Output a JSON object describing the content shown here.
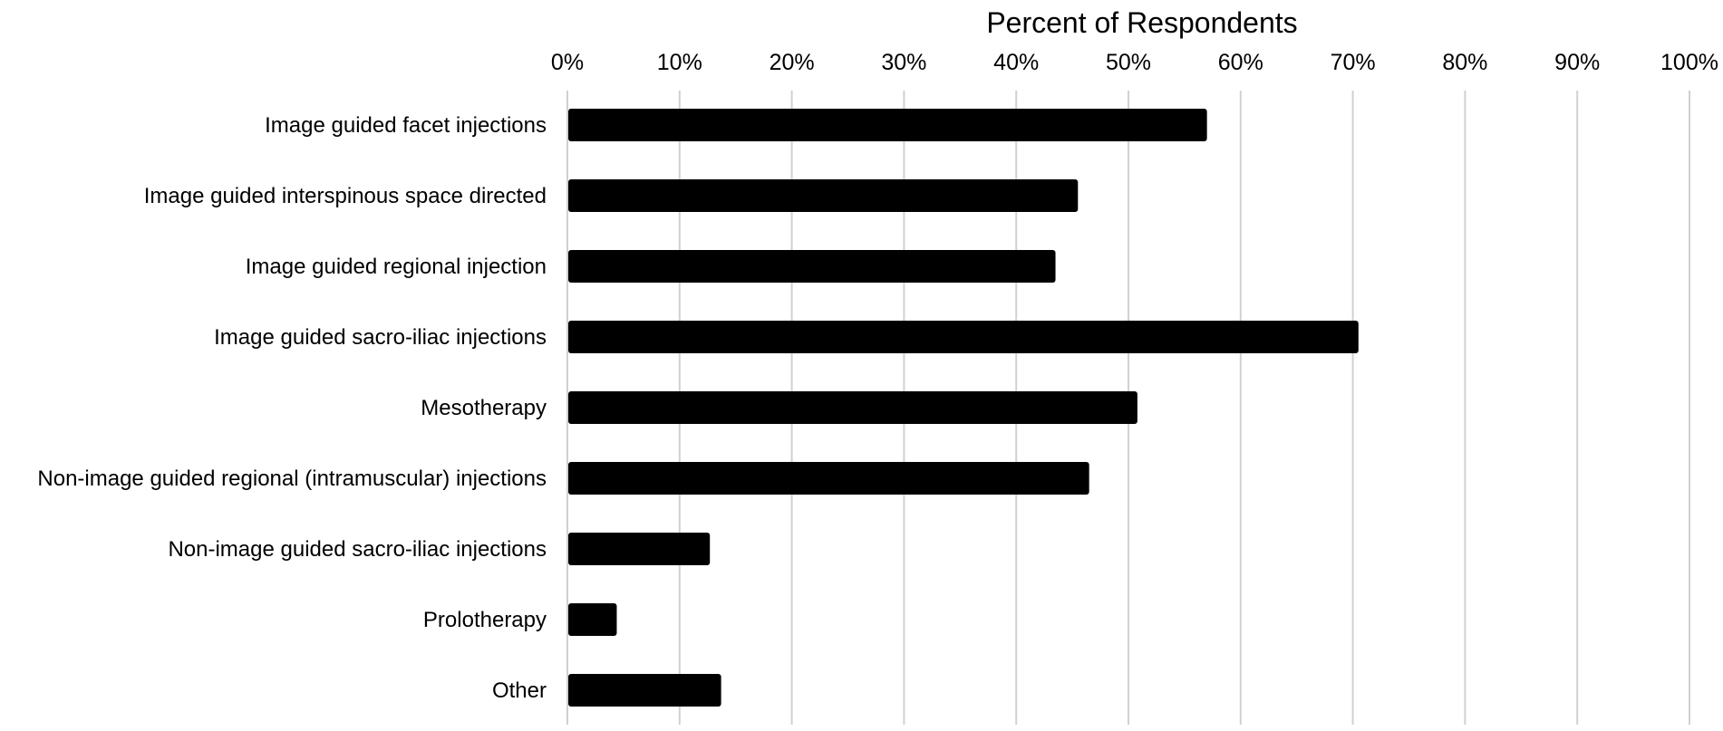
{
  "chart_data": {
    "type": "bar",
    "orientation": "horizontal",
    "title": "",
    "xlabel": "Percent of Respondents",
    "ylabel": "",
    "xlim": [
      0,
      100
    ],
    "x_ticks": [
      "0%",
      "10%",
      "20%",
      "30%",
      "40%",
      "50%",
      "60%",
      "70%",
      "80%",
      "90%",
      "100%"
    ],
    "categories": [
      "Image guided facet injections",
      "Image guided interspinous space directed",
      "Image guided regional injection",
      "Image guided sacro-iliac injections",
      "Mesotherapy",
      "Non-image guided regional (intramuscular) injections",
      "Non-image guided sacro-iliac injections",
      "Prolotherapy",
      "Other"
    ],
    "values": [
      57,
      45.5,
      43.5,
      70.5,
      50.8,
      46.5,
      12.7,
      4.4,
      13.7
    ],
    "bar_color": "#000000",
    "grid": true,
    "legend": "none"
  }
}
